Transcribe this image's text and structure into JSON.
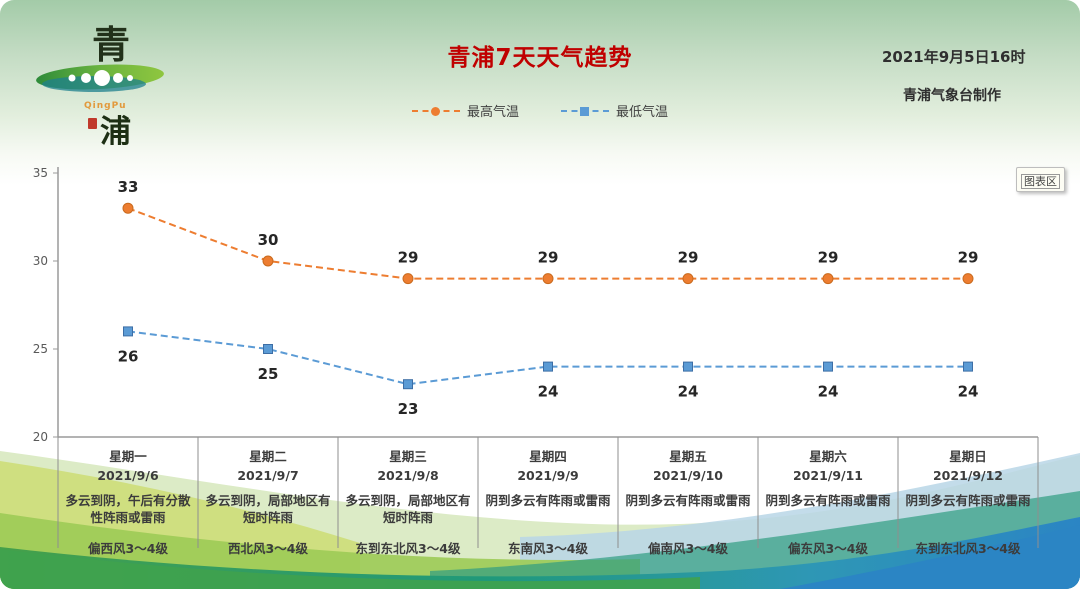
{
  "header": {
    "title": "青浦7天天气趋势",
    "datetime": "2021年9月5日16时",
    "credit": "青浦气象台制作",
    "logo": {
      "char_top": "青",
      "char_bottom": "浦",
      "subtitle": "QingPu"
    }
  },
  "legend": [
    {
      "label": "最高气温",
      "color": "#ed7d31",
      "marker": "circle"
    },
    {
      "label": "最低气温",
      "color": "#5b9bd5",
      "marker": "square"
    }
  ],
  "tooltip": "图表区",
  "chart_data": {
    "type": "line",
    "title": "青浦7天天气趋势",
    "categories": [
      "2021/9/6",
      "2021/9/7",
      "2021/9/8",
      "2021/9/9",
      "2021/9/10",
      "2021/9/11",
      "2021/9/12"
    ],
    "series": [
      {
        "name": "最高气温",
        "color": "#ed7d31",
        "marker_stroke": "#c96a1d",
        "marker": "circle",
        "label_position": "above",
        "values": [
          33,
          30,
          29,
          29,
          29,
          29,
          29
        ]
      },
      {
        "name": "最低气温",
        "color": "#5b9bd5",
        "marker_stroke": "#3d6ea5",
        "marker": "square",
        "label_position": "below",
        "values": [
          26,
          25,
          23,
          24,
          24,
          24,
          24
        ]
      }
    ],
    "ylim": [
      20,
      35
    ],
    "yticks": [
      20,
      25,
      30,
      35
    ],
    "grid": false,
    "line_style": "dashed",
    "legend_position": "top-center"
  },
  "table": {
    "days": [
      {
        "weekday": "星期一",
        "date": "2021/9/6",
        "weather": "多云到阴，午后有分散性阵雨或雷雨",
        "wind": "偏西风3～4级"
      },
      {
        "weekday": "星期二",
        "date": "2021/9/7",
        "weather": "多云到阴，局部地区有短时阵雨",
        "wind": "西北风3～4级"
      },
      {
        "weekday": "星期三",
        "date": "2021/9/8",
        "weather": "多云到阴，局部地区有短时阵雨",
        "wind": "东到东北风3～4级"
      },
      {
        "weekday": "星期四",
        "date": "2021/9/9",
        "weather": "阴到多云有阵雨或雷雨",
        "wind": "东南风3～4级"
      },
      {
        "weekday": "星期五",
        "date": "2021/9/10",
        "weather": "阴到多云有阵雨或雷雨",
        "wind": "偏南风3～4级"
      },
      {
        "weekday": "星期六",
        "date": "2021/9/11",
        "weather": "阴到多云有阵雨或雷雨",
        "wind": "偏东风3～4级"
      },
      {
        "weekday": "星期日",
        "date": "2021/9/12",
        "weather": "阴到多云有阵雨或雷雨",
        "wind": "东到东北风3～4级"
      }
    ]
  },
  "colors": {
    "title": "#c00000",
    "high_series": "#ed7d31",
    "low_series": "#5b9bd5",
    "axis": "#9a9a9a",
    "table_border": "#8f8f8f"
  }
}
